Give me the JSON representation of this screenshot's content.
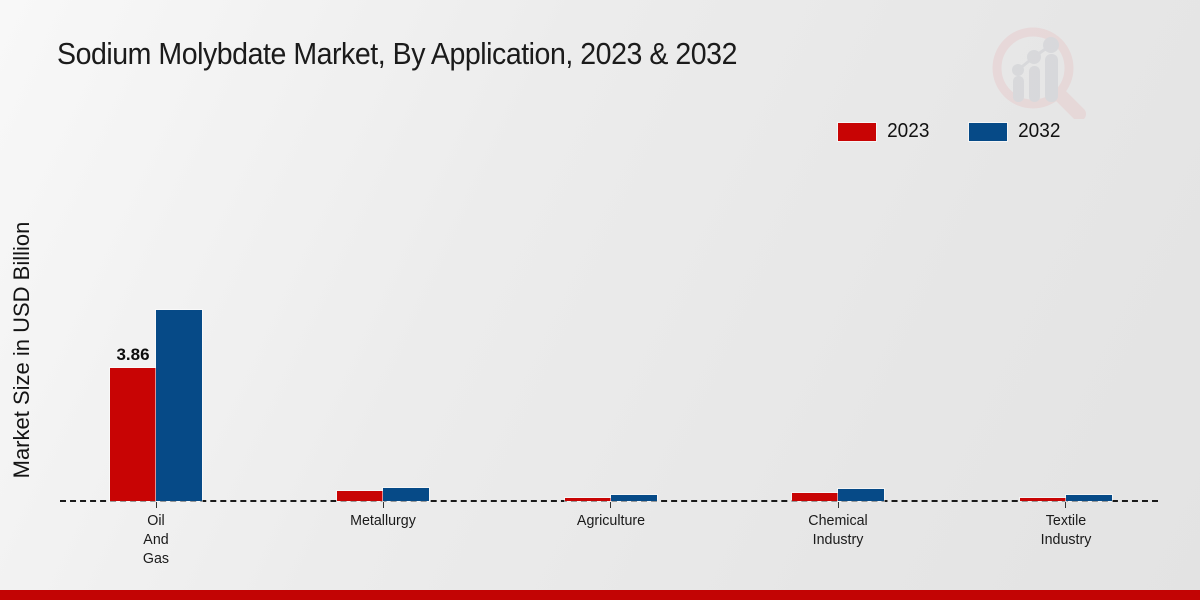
{
  "page": {
    "footer_color": "#c20404",
    "logo_icon": "magnifier-bar-chart-icon"
  },
  "chart_data": {
    "type": "bar",
    "title": "Sodium Molybdate Market, By Application, 2023 & 2032",
    "xlabel": "",
    "ylabel": "Market Size in USD Billion",
    "ylim": [
      0,
      5.8
    ],
    "grid": false,
    "legend_position": "top-right",
    "baseline_style": "dashed",
    "categories": [
      [
        "Oil",
        "And",
        "Gas"
      ],
      [
        "Metallurgy"
      ],
      [
        "Agriculture"
      ],
      [
        "Chemical",
        "Industry"
      ],
      [
        "Textile",
        "Industry"
      ]
    ],
    "series": [
      {
        "name": "2023",
        "color": "#c80404",
        "values": [
          3.86,
          0.28,
          0.1,
          0.24,
          0.1
        ],
        "point_labels": [
          "3.86",
          "",
          "",
          "",
          ""
        ]
      },
      {
        "name": "2032",
        "color": "#064a87",
        "values": [
          5.54,
          0.38,
          0.16,
          0.35,
          0.16
        ],
        "point_labels": [
          "",
          "",
          "",
          "",
          ""
        ]
      }
    ]
  }
}
